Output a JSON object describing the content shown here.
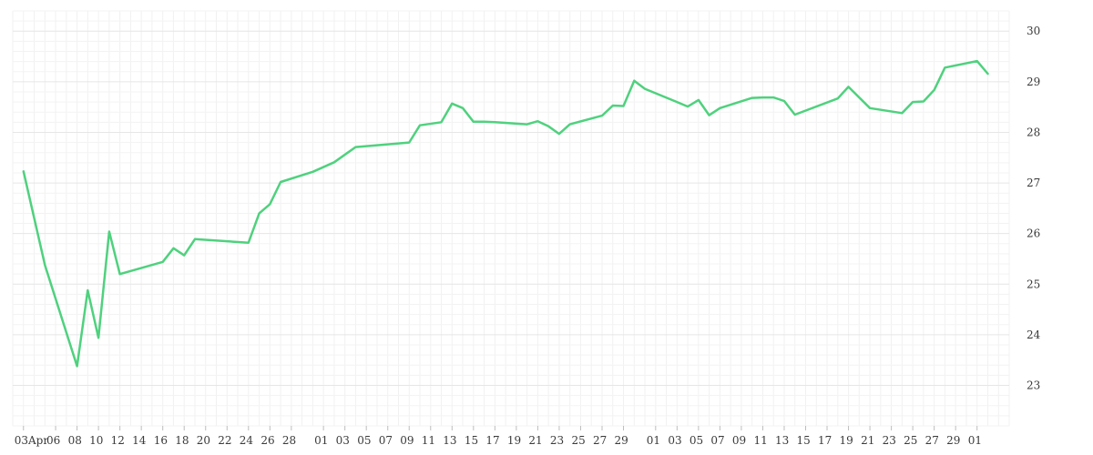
{
  "chart_data": {
    "type": "line",
    "title": "",
    "xlabel": "",
    "ylabel": "",
    "ylim": [
      22.2,
      30.4
    ],
    "y_ticks": [
      23,
      24,
      25,
      26,
      27,
      28,
      29,
      30
    ],
    "y_axis_side": "right",
    "grid": true,
    "series_color": "#4fd17e",
    "x_tick_labels": [
      "03Apr",
      "06",
      "08",
      "10",
      "12",
      "14",
      "16",
      "18",
      "20",
      "22",
      "24",
      "26",
      "28",
      "01",
      "03",
      "05",
      "07",
      "09",
      "11",
      "13",
      "15",
      "17",
      "19",
      "21",
      "23",
      "25",
      "27",
      "29",
      "01",
      "03",
      "05",
      "07",
      "09",
      "11",
      "13",
      "15",
      "17",
      "19",
      "21",
      "23",
      "25",
      "27",
      "29",
      "01"
    ],
    "x_tick_dates": [
      "2024-04-03",
      "2024-04-06",
      "2024-04-08",
      "2024-04-10",
      "2024-04-12",
      "2024-04-14",
      "2024-04-16",
      "2024-04-18",
      "2024-04-20",
      "2024-04-22",
      "2024-04-24",
      "2024-04-26",
      "2024-04-28",
      "2024-05-01",
      "2024-05-03",
      "2024-05-05",
      "2024-05-07",
      "2024-05-09",
      "2024-05-11",
      "2024-05-13",
      "2024-05-15",
      "2024-05-17",
      "2024-05-19",
      "2024-05-21",
      "2024-05-23",
      "2024-05-25",
      "2024-05-27",
      "2024-05-29",
      "2024-06-01",
      "2024-06-03",
      "2024-06-05",
      "2024-06-07",
      "2024-06-09",
      "2024-06-11",
      "2024-06-13",
      "2024-06-15",
      "2024-06-17",
      "2024-06-19",
      "2024-06-21",
      "2024-06-23",
      "2024-06-25",
      "2024-06-27",
      "2024-06-29",
      "2024-07-01"
    ],
    "series": [
      {
        "x": [
          "2024-04-03",
          "2024-04-05",
          "2024-04-08",
          "2024-04-09",
          "2024-04-10",
          "2024-04-11",
          "2024-04-12",
          "2024-04-16",
          "2024-04-17",
          "2024-04-18",
          "2024-04-19",
          "2024-04-24",
          "2024-04-25",
          "2024-04-26",
          "2024-04-27",
          "2024-04-30",
          "2024-05-02",
          "2024-05-04",
          "2024-05-09",
          "2024-05-10",
          "2024-05-12",
          "2024-05-13",
          "2024-05-14",
          "2024-05-15",
          "2024-05-16",
          "2024-05-17",
          "2024-05-20",
          "2024-05-21",
          "2024-05-22",
          "2024-05-23",
          "2024-05-24",
          "2024-05-27",
          "2024-05-28",
          "2024-05-29",
          "2024-05-30",
          "2024-05-31",
          "2024-06-03",
          "2024-06-04",
          "2024-06-05",
          "2024-06-06",
          "2024-06-07",
          "2024-06-10",
          "2024-06-11",
          "2024-06-12",
          "2024-06-13",
          "2024-06-14",
          "2024-06-18",
          "2024-06-19",
          "2024-06-21",
          "2024-06-24",
          "2024-06-25",
          "2024-06-26",
          "2024-06-27",
          "2024-06-28",
          "2024-07-01",
          "2024-07-02"
        ],
        "y": [
          27.23,
          25.38,
          23.38,
          24.88,
          23.94,
          26.04,
          25.2,
          25.44,
          25.71,
          25.57,
          25.89,
          25.82,
          26.4,
          26.58,
          27.02,
          27.22,
          27.41,
          27.71,
          27.8,
          28.14,
          28.2,
          28.57,
          28.48,
          28.21,
          28.21,
          28.2,
          28.16,
          28.22,
          28.12,
          27.97,
          28.16,
          28.33,
          28.53,
          28.52,
          29.02,
          28.86,
          28.6,
          28.51,
          28.64,
          28.34,
          28.48,
          28.68,
          28.69,
          28.69,
          28.62,
          28.35,
          28.67,
          28.9,
          28.48,
          28.38,
          28.6,
          28.61,
          28.84,
          29.28,
          29.41,
          29.16
        ]
      }
    ]
  }
}
